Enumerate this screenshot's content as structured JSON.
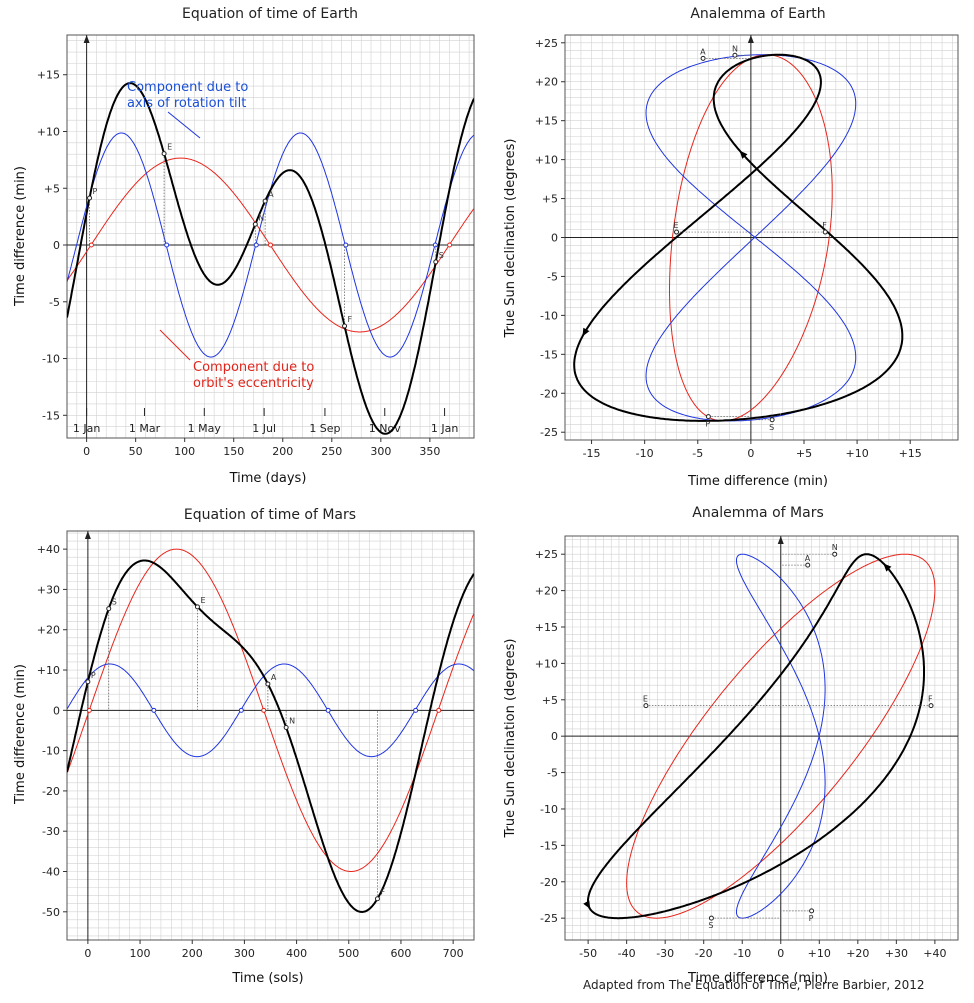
{
  "credit": "Adapted from The Equation of Time, Pierre Barbier, 2012",
  "colors": {
    "total": "#000000",
    "tilt": "#1f35e0",
    "eccentricity": "#e8251b",
    "grid": "#d2d2d2",
    "frame": "#555555"
  },
  "chart_data": [
    {
      "id": "eot-earth",
      "type": "line",
      "title": "Equation of time of Earth",
      "xlabel": "Time (days)",
      "ylabel": "Time difference (min)",
      "xlim": [
        -20,
        395
      ],
      "ylim": [
        -17,
        18.5
      ],
      "xticks": [
        0,
        50,
        100,
        150,
        200,
        250,
        300,
        350
      ],
      "xtick_labels": [
        "0",
        "50",
        "100",
        "150",
        "200",
        "250",
        "300",
        "350"
      ],
      "yticks": [
        -15,
        -10,
        -5,
        0,
        5,
        10,
        15
      ],
      "ytick_labels": [
        "-15",
        "-10",
        "-5",
        "0",
        "+5",
        "+10",
        "+15"
      ],
      "month_markers": [
        {
          "x": 0,
          "label": "1 Jan"
        },
        {
          "x": 59,
          "label": "1 Mar"
        },
        {
          "x": 120,
          "label": "1 May"
        },
        {
          "x": 181,
          "label": "1 Jul"
        },
        {
          "x": 243,
          "label": "1 Sep"
        },
        {
          "x": 304,
          "label": "1 Nov"
        },
        {
          "x": 365,
          "label": "1 Jan"
        }
      ],
      "series": [
        {
          "name": "Equation of time",
          "color": "total",
          "period": 365.25,
          "comps": [
            [
              7.66,
              0.0172,
              -0.077
            ],
            [
              9.87,
              0.0344,
              0.352
            ]
          ]
        },
        {
          "name": "Component due to axis of rotation tilt",
          "color": "tilt",
          "period": 365.25,
          "comps": [
            [
              0,
              0.0172,
              0
            ],
            [
              9.87,
              0.0344,
              0.352
            ]
          ]
        },
        {
          "name": "Component due to orbit's eccentricity",
          "color": "eccentricity",
          "period": 365.25,
          "comps": [
            [
              7.66,
              0.0172,
              -0.077
            ],
            [
              0,
              0.0344,
              0
            ]
          ]
        }
      ],
      "markers": [
        {
          "label": "P",
          "x": 3,
          "series": 0
        },
        {
          "label": "E",
          "x": 79,
          "series": 0
        },
        {
          "label": "N",
          "x": 172,
          "series": 0
        },
        {
          "label": "A",
          "x": 182,
          "series": 0
        },
        {
          "label": "F",
          "x": 263,
          "series": 0
        },
        {
          "label": "S",
          "x": 356,
          "series": 0
        }
      ],
      "annotations": [
        {
          "text": [
            "Component due to",
            "axis of rotation tilt"
          ],
          "color": "tilt"
        },
        {
          "text": [
            "Component due to",
            "orbit's eccentricity"
          ],
          "color": "eccentricity"
        }
      ]
    },
    {
      "id": "analemma-earth",
      "type": "line",
      "title": "Analemma of Earth",
      "xlabel": "Time difference (min)",
      "ylabel": "True Sun declination (degrees)",
      "xlim": [
        -17.5,
        19.5
      ],
      "ylim": [
        -26,
        26
      ],
      "xticks": [
        -15,
        -10,
        -5,
        0,
        5,
        10,
        15
      ],
      "xtick_labels": [
        "-15",
        "-10",
        "-5",
        "0",
        "+5",
        "+10",
        "+15"
      ],
      "yticks": [
        -25,
        -20,
        -15,
        -10,
        -5,
        0,
        5,
        10,
        15,
        20,
        25
      ],
      "ytick_labels": [
        "-25",
        "-20",
        "-15",
        "-10",
        "-5",
        "0",
        "+5",
        "+10",
        "+15",
        "+20",
        "+25"
      ],
      "markers": [
        {
          "label": "A",
          "x": -4.5,
          "y": 23.0
        },
        {
          "label": "N",
          "x": -1.5,
          "y": 23.4
        },
        {
          "label": "E",
          "x": -7.0,
          "y": 0.7
        },
        {
          "label": "F",
          "x": 7.0,
          "y": 0.7
        },
        {
          "label": "P",
          "x": -4.0,
          "y": -23.0
        },
        {
          "label": "S",
          "x": 2.0,
          "y": -23.4
        }
      ]
    },
    {
      "id": "eot-mars",
      "type": "line",
      "title": "Equation of time of Mars",
      "xlabel": "Time (sols)",
      "ylabel": "Time difference (min)",
      "xlim": [
        -40,
        740
      ],
      "ylim": [
        -57,
        44.5
      ],
      "xticks": [
        0,
        100,
        200,
        300,
        400,
        500,
        600,
        700
      ],
      "xtick_labels": [
        "0",
        "100",
        "200",
        "300",
        "400",
        "500",
        "600",
        "700"
      ],
      "yticks": [
        -50,
        -40,
        -30,
        -20,
        -10,
        0,
        10,
        20,
        30,
        40
      ],
      "ytick_labels": [
        "-50",
        "-40",
        "-30",
        "-20",
        "-10",
        "0",
        "+10",
        "+20",
        "+30",
        "+40"
      ],
      "series": [
        {
          "name": "Equation of time",
          "color": "total",
          "period": 668.6,
          "comps": [
            [
              40,
              0.009397,
              -0.025
            ],
            [
              11.5,
              0.018794,
              0.78
            ]
          ]
        },
        {
          "name": "Component due to axis of rotation tilt",
          "color": "tilt",
          "period": 668.6,
          "comps": [
            [
              0,
              0.009397,
              0
            ],
            [
              11.5,
              0.018794,
              0.78
            ]
          ]
        },
        {
          "name": "Component due to orbit's eccentricity",
          "color": "eccentricity",
          "period": 668.6,
          "comps": [
            [
              40,
              0.009397,
              -0.025
            ],
            [
              0,
              0.018794,
              0
            ]
          ]
        }
      ],
      "markers": [
        {
          "label": "P",
          "x": 0,
          "series": 0
        },
        {
          "label": "S",
          "x": 40,
          "series": 0
        },
        {
          "label": "E",
          "x": 210,
          "series": 0
        },
        {
          "label": "A",
          "x": 345,
          "series": 0
        },
        {
          "label": "N",
          "x": 380,
          "series": 0
        },
        {
          "label": "F",
          "x": 555,
          "series": 0
        }
      ]
    },
    {
      "id": "analemma-mars",
      "type": "line",
      "title": "Analemma of Mars",
      "xlabel": "Time difference (min)",
      "ylabel": "True Sun declination (degrees)",
      "xlim": [
        -56,
        46
      ],
      "ylim": [
        -28,
        27.5
      ],
      "xticks": [
        -50,
        -40,
        -30,
        -20,
        -10,
        0,
        10,
        20,
        30,
        40
      ],
      "xtick_labels": [
        "-50",
        "-40",
        "-30",
        "-20",
        "-10",
        "0",
        "+10",
        "+20",
        "+30",
        "+40"
      ],
      "yticks": [
        -25,
        -20,
        -15,
        -10,
        -5,
        0,
        5,
        10,
        15,
        20,
        25
      ],
      "ytick_labels": [
        "-25",
        "-20",
        "-15",
        "-10",
        "-5",
        "0",
        "+5",
        "+10",
        "+15",
        "+20",
        "+25"
      ],
      "markers": [
        {
          "label": "N",
          "x": 14,
          "y": 25.0
        },
        {
          "label": "A",
          "x": 7,
          "y": 23.5
        },
        {
          "label": "E",
          "x": -35,
          "y": 4.2
        },
        {
          "label": "F",
          "x": 39,
          "y": 4.2
        },
        {
          "label": "S",
          "x": -18,
          "y": -25.0
        },
        {
          "label": "P",
          "x": 8,
          "y": -24.0
        }
      ]
    }
  ]
}
